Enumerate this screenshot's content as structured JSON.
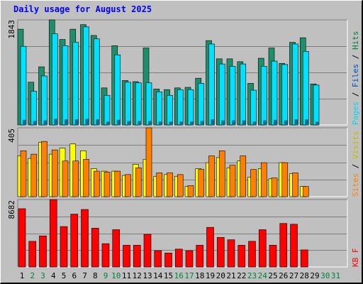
{
  "title": "Daily usage for August 2025",
  "colors": {
    "hits": "#008040",
    "hits_bar": "#1f8f6b",
    "files": "#00e0ff",
    "pages": "#00d8f0",
    "visits": "#ff8000",
    "sites": "#ffff00",
    "kbytes": "#ff0000",
    "weekday_label": "#000000",
    "weekend_label": "#008040",
    "title": "#0000ff"
  },
  "chart_data": [
    {
      "type": "bar",
      "panel": "hits-files-pages",
      "categories": [
        "1",
        "2",
        "3",
        "4",
        "5",
        "6",
        "7",
        "8",
        "9",
        "10",
        "11",
        "12",
        "13",
        "14",
        "15",
        "16",
        "17",
        "18",
        "19",
        "20",
        "21",
        "22",
        "23",
        "24",
        "25",
        "26",
        "27",
        "28",
        "29",
        "30",
        "31"
      ],
      "ymax_label": "1843",
      "ylim": [
        0,
        1843
      ],
      "series": [
        {
          "name": "Hits",
          "values": [
            1680,
            750,
            1020,
            1843,
            1500,
            1680,
            1760,
            1570,
            650,
            1390,
            780,
            760,
            1350,
            630,
            620,
            650,
            660,
            820,
            1480,
            1160,
            1160,
            1110,
            730,
            1170,
            1350,
            1080,
            1450,
            1530,
            720,
            0,
            0
          ]
        },
        {
          "name": "Files",
          "values": [
            1380,
            590,
            860,
            1600,
            1390,
            1450,
            1720,
            1510,
            520,
            1230,
            750,
            740,
            740,
            580,
            520,
            620,
            620,
            730,
            1420,
            1070,
            1030,
            1070,
            610,
            1030,
            1120,
            1060,
            1420,
            1290,
            700,
            0,
            0
          ]
        },
        {
          "name": "Pages",
          "values": [
            90,
            70,
            80,
            110,
            100,
            100,
            110,
            100,
            60,
            90,
            70,
            70,
            70,
            60,
            60,
            60,
            60,
            70,
            100,
            80,
            80,
            80,
            60,
            80,
            90,
            80,
            100,
            100,
            60,
            0,
            0
          ]
        }
      ],
      "right_label": [
        "Pages",
        "Files",
        "Hits"
      ]
    },
    {
      "type": "bar",
      "panel": "visits-sites",
      "categories": [
        "1",
        "2",
        "3",
        "4",
        "5",
        "6",
        "7",
        "8",
        "9",
        "10",
        "11",
        "12",
        "13",
        "14",
        "15",
        "16",
        "17",
        "18",
        "19",
        "20",
        "21",
        "22",
        "23",
        "24",
        "25",
        "26",
        "27",
        "28",
        "29",
        "30",
        "31"
      ],
      "ymax_label": "405",
      "ylim": [
        0,
        405
      ],
      "series": [
        {
          "name": "Visits",
          "values": [
            270,
            250,
            325,
            275,
            210,
            210,
            220,
            150,
            145,
            150,
            130,
            170,
            405,
            140,
            140,
            130,
            65,
            160,
            240,
            270,
            185,
            240,
            160,
            200,
            110,
            200,
            140,
            60,
            0,
            0,
            0
          ]
        },
        {
          "name": "Sites",
          "values": [
            240,
            225,
            320,
            250,
            285,
            310,
            270,
            165,
            150,
            150,
            125,
            190,
            220,
            120,
            130,
            120,
            60,
            165,
            200,
            230,
            170,
            210,
            115,
            165,
            105,
            200,
            135,
            60,
            0,
            0,
            0
          ]
        }
      ],
      "right_label": [
        "Sites",
        "Visits"
      ]
    },
    {
      "type": "bar",
      "panel": "kbytes",
      "categories": [
        "1",
        "2",
        "3",
        "4",
        "5",
        "6",
        "7",
        "8",
        "9",
        "10",
        "11",
        "12",
        "13",
        "14",
        "15",
        "16",
        "17",
        "18",
        "19",
        "20",
        "21",
        "22",
        "23",
        "24",
        "25",
        "26",
        "27",
        "28",
        "29",
        "30",
        "31"
      ],
      "ymax_label": "8682",
      "ylim": [
        0,
        8682
      ],
      "series": [
        {
          "name": "KB F",
          "values": [
            7500,
            3300,
            4000,
            8682,
            5200,
            6800,
            7400,
            5000,
            3000,
            4800,
            2800,
            2800,
            4200,
            2100,
            1800,
            2300,
            2100,
            2800,
            5100,
            3800,
            3500,
            2800,
            3300,
            4800,
            2800,
            5600,
            5500,
            2200,
            0,
            0,
            0
          ]
        }
      ],
      "right_label": [
        "KB F"
      ]
    }
  ],
  "x_axis": {
    "days": [
      "1",
      "2",
      "3",
      "4",
      "5",
      "6",
      "7",
      "8",
      "9",
      "10",
      "11",
      "12",
      "13",
      "14",
      "15",
      "16",
      "17",
      "18",
      "19",
      "20",
      "21",
      "22",
      "23",
      "24",
      "25",
      "26",
      "27",
      "28",
      "29",
      "30",
      "31"
    ],
    "weekend_days": [
      "2",
      "3",
      "9",
      "10",
      "16",
      "17",
      "23",
      "24",
      "30",
      "31"
    ]
  }
}
